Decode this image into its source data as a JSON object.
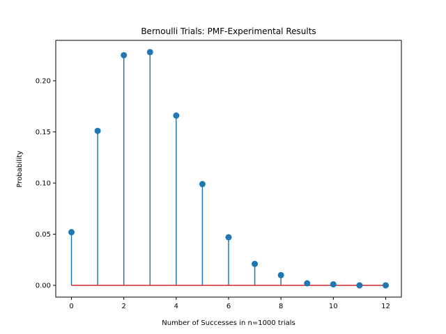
{
  "chart_data": {
    "type": "stem",
    "title": "Bernoulli Trials: PMF-Experimental Results",
    "xlabel": "Number of Successes in n=1000 trials",
    "ylabel": "Probability",
    "xlim": [
      -0.6,
      12.6
    ],
    "ylim": [
      -0.0115,
      0.2395
    ],
    "xticks": [
      0,
      2,
      4,
      6,
      8,
      10,
      12
    ],
    "xtick_labels": [
      "0",
      "2",
      "4",
      "6",
      "8",
      "10",
      "12"
    ],
    "yticks": [
      0.0,
      0.05,
      0.1,
      0.15,
      0.2
    ],
    "ytick_labels": [
      "0.00",
      "0.05",
      "0.10",
      "0.15",
      "0.20"
    ],
    "grid": false,
    "legend": "none",
    "x": [
      0,
      1,
      2,
      3,
      4,
      5,
      6,
      7,
      8,
      9,
      10,
      11,
      12
    ],
    "values": [
      0.052,
      0.151,
      0.225,
      0.228,
      0.166,
      0.099,
      0.047,
      0.021,
      0.01,
      0.002,
      0.001,
      0.0,
      0.0
    ],
    "colors": {
      "stem": "#1f77b4",
      "marker": "#1f77b4",
      "baseline": "#d62728",
      "axes": "#000000"
    }
  }
}
